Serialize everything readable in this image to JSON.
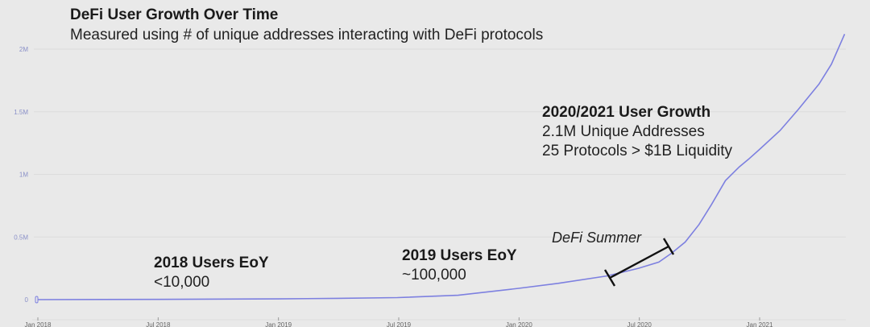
{
  "chart_data": {
    "type": "line",
    "title": "DeFi User Growth Over Time",
    "subtitle": "Measured using # of unique addresses interacting with DeFi protocols",
    "xlabel": "",
    "ylabel": "",
    "x_ticks": [
      "Jan 2018",
      "Jul 2018",
      "Jan 2019",
      "Jul 2019",
      "Jan 2020",
      "Jul 2020",
      "Jan 2021"
    ],
    "y_ticks": [
      "0",
      "0.5M",
      "1M",
      "1.5M",
      "2M"
    ],
    "ylim": [
      0,
      2000000
    ],
    "xlim": [
      "2018-01-01",
      "2021-05-15"
    ],
    "grid": true,
    "line_color": "#7d80e0",
    "series": [
      {
        "x": [
          "2018-01-01",
          "2018-07-01",
          "2019-01-01",
          "2019-04-01",
          "2019-07-01",
          "2019-10-01",
          "2020-01-01",
          "2020-03-01",
          "2020-05-15",
          "2020-07-01",
          "2020-08-01",
          "2020-08-20",
          "2020-09-10",
          "2020-10-01",
          "2020-10-20",
          "2020-11-10",
          "2020-12-01",
          "2020-12-15",
          "2021-01-01",
          "2021-02-01",
          "2021-03-01",
          "2021-04-01",
          "2021-04-20",
          "2021-05-10"
        ],
        "y": [
          0,
          2000,
          6000,
          10000,
          16000,
          35000,
          90000,
          130000,
          190000,
          250000,
          300000,
          370000,
          460000,
          600000,
          760000,
          950000,
          1060000,
          1120000,
          1200000,
          1350000,
          1520000,
          1720000,
          1880000,
          2120000
        ]
      }
    ],
    "annotations": {
      "growth_title": "2020/2021 User Growth",
      "growth_line1": "2.1M Unique Addresses",
      "growth_line2": "25 Protocols > $1B Liquidity",
      "summer": "DeFi Summer",
      "y2018_title": "2018 Users EoY",
      "y2018_value": "<10,000",
      "y2019_title": "2019 Users EoY",
      "y2019_value": "~100,000"
    }
  }
}
